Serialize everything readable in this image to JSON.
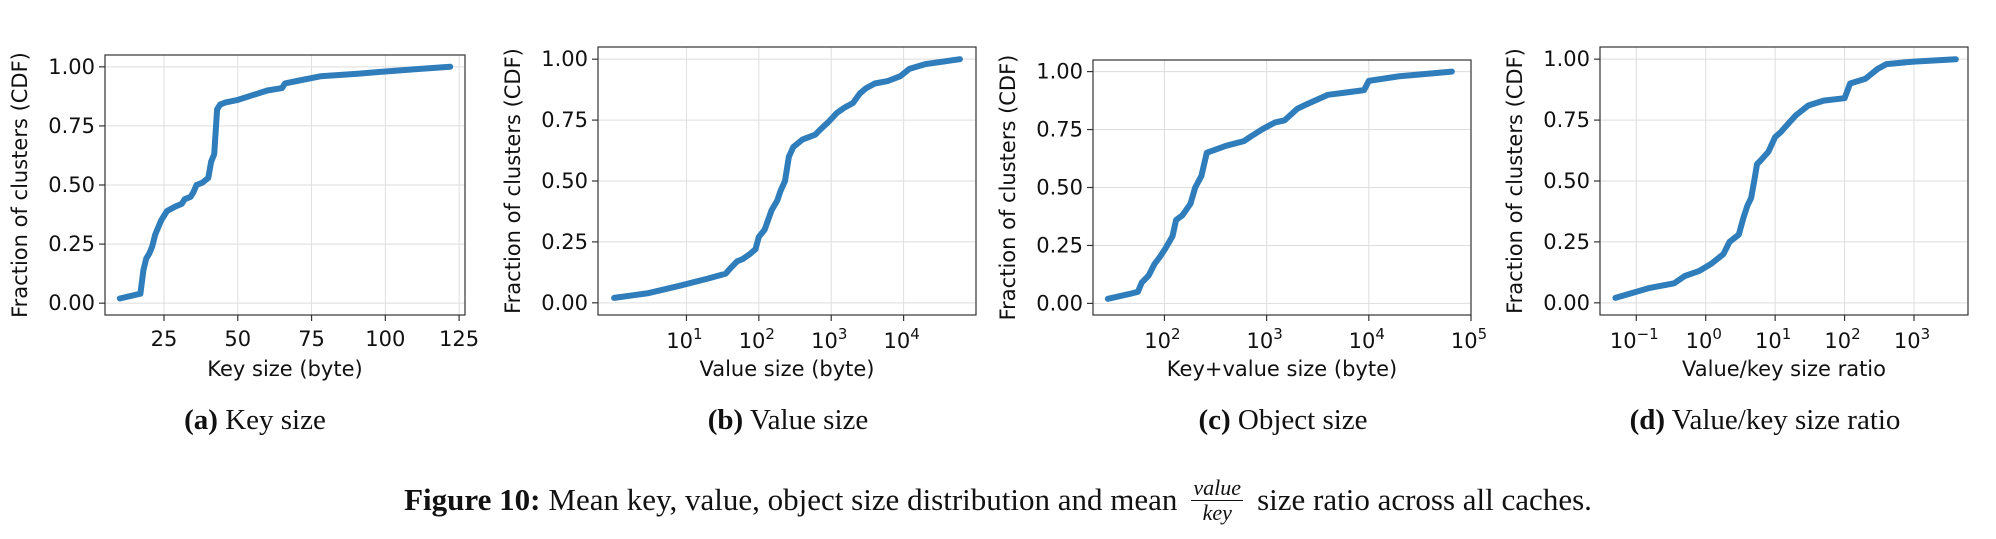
{
  "figure": {
    "caption_label": "Figure 10:",
    "caption_before": "Mean key, value, object size distribution and mean",
    "caption_frac_num": "value",
    "caption_frac_den": "key",
    "caption_after": "size ratio across all caches."
  },
  "series_color": "#2f7dbb",
  "chart_data": [
    {
      "id": "a",
      "type": "line",
      "subcaption_letter": "(a)",
      "subcaption_text": "Key size",
      "xlabel": "Key size (byte)",
      "ylabel": "Fraction of clusters (CDF)",
      "xscale": "linear",
      "xlim": [
        5,
        127
      ],
      "ylim": [
        -0.05,
        1.05
      ],
      "xticks": [
        25,
        50,
        75,
        100,
        125
      ],
      "xtick_labels": [
        "25",
        "50",
        "75",
        "100",
        "125"
      ],
      "yticks": [
        0,
        0.25,
        0.5,
        0.75,
        1.0
      ],
      "ytick_labels": [
        "0.00",
        "0.25",
        "0.50",
        "0.75",
        "1.00"
      ],
      "grid": true,
      "x": [
        10,
        17,
        18,
        19,
        20,
        21,
        22,
        24,
        26,
        29,
        31,
        32,
        34,
        35,
        36,
        38,
        39,
        40,
        41,
        42,
        43,
        44,
        46,
        50,
        55,
        60,
        65,
        66,
        70,
        78,
        90,
        100,
        110,
        122
      ],
      "y": [
        0.02,
        0.04,
        0.14,
        0.19,
        0.21,
        0.24,
        0.29,
        0.35,
        0.39,
        0.41,
        0.42,
        0.44,
        0.45,
        0.47,
        0.5,
        0.51,
        0.52,
        0.53,
        0.6,
        0.63,
        0.82,
        0.84,
        0.85,
        0.86,
        0.88,
        0.9,
        0.91,
        0.93,
        0.94,
        0.96,
        0.97,
        0.98,
        0.99,
        1.0
      ]
    },
    {
      "id": "b",
      "type": "line",
      "subcaption_letter": "(b)",
      "subcaption_text": "Value size",
      "xlabel": "Value size (byte)",
      "ylabel": "Fraction of clusters (CDF)",
      "xscale": "log",
      "xlim": [
        0.6,
        100000
      ],
      "ylim": [
        -0.05,
        1.05
      ],
      "xticks": [
        10,
        100,
        1000,
        10000
      ],
      "xtick_base": [
        "10",
        "10",
        "10",
        "10"
      ],
      "xtick_exp": [
        "1",
        "2",
        "3",
        "4"
      ],
      "yticks": [
        0,
        0.25,
        0.5,
        0.75,
        1.0
      ],
      "ytick_labels": [
        "0.00",
        "0.25",
        "0.50",
        "0.75",
        "1.00"
      ],
      "grid": true,
      "x": [
        1,
        3,
        8,
        20,
        35,
        40,
        50,
        60,
        75,
        90,
        100,
        120,
        150,
        180,
        200,
        230,
        260,
        300,
        400,
        600,
        700,
        900,
        1200,
        1500,
        2000,
        2500,
        3000,
        4000,
        6000,
        9000,
        12000,
        20000,
        60000
      ],
      "y": [
        0.02,
        0.04,
        0.07,
        0.1,
        0.12,
        0.14,
        0.17,
        0.18,
        0.2,
        0.22,
        0.27,
        0.3,
        0.38,
        0.42,
        0.46,
        0.5,
        0.6,
        0.64,
        0.67,
        0.69,
        0.71,
        0.74,
        0.78,
        0.8,
        0.82,
        0.86,
        0.88,
        0.9,
        0.91,
        0.93,
        0.96,
        0.98,
        1.0
      ]
    },
    {
      "id": "c",
      "type": "line",
      "subcaption_letter": "(c)",
      "subcaption_text": "Object size",
      "xlabel": "Key+value size (byte)",
      "ylabel": "Fraction of clusters (CDF)",
      "xscale": "log",
      "xlim": [
        20,
        100000
      ],
      "ylim": [
        -0.05,
        1.05
      ],
      "xticks": [
        100,
        1000,
        10000,
        100000
      ],
      "xtick_base": [
        "10",
        "10",
        "10",
        "10"
      ],
      "xtick_exp": [
        "2",
        "3",
        "4",
        "5"
      ],
      "yticks": [
        0,
        0.25,
        0.5,
        0.75,
        1.0
      ],
      "ytick_labels": [
        "0.00",
        "0.25",
        "0.50",
        "0.75",
        "1.00"
      ],
      "grid": true,
      "x": [
        28,
        45,
        55,
        60,
        70,
        80,
        90,
        100,
        120,
        130,
        150,
        180,
        200,
        230,
        260,
        300,
        400,
        600,
        700,
        900,
        1200,
        1500,
        2000,
        2500,
        4000,
        6000,
        9000,
        10000,
        20000,
        65000
      ],
      "y": [
        0.02,
        0.04,
        0.05,
        0.09,
        0.12,
        0.17,
        0.2,
        0.23,
        0.29,
        0.36,
        0.38,
        0.43,
        0.5,
        0.55,
        0.65,
        0.66,
        0.68,
        0.7,
        0.72,
        0.75,
        0.78,
        0.79,
        0.84,
        0.86,
        0.9,
        0.91,
        0.92,
        0.96,
        0.98,
        1.0
      ]
    },
    {
      "id": "d",
      "type": "line",
      "subcaption_letter": "(d)",
      "subcaption_text": "Value/key size ratio",
      "xlabel": "Value/key size ratio",
      "ylabel": "Fraction of clusters (CDF)",
      "xscale": "log",
      "xlim": [
        0.03,
        6000
      ],
      "ylim": [
        -0.05,
        1.05
      ],
      "xticks": [
        0.1,
        1,
        10,
        100,
        1000
      ],
      "xtick_base": [
        "10",
        "10",
        "10",
        "10",
        "10"
      ],
      "xtick_exp": [
        "−1",
        "0",
        "1",
        "2",
        "3"
      ],
      "yticks": [
        0,
        0.25,
        0.5,
        0.75,
        1.0
      ],
      "ytick_labels": [
        "0.00",
        "0.25",
        "0.50",
        "0.75",
        "1.00"
      ],
      "grid": true,
      "x": [
        0.05,
        0.15,
        0.35,
        0.5,
        0.8,
        1.2,
        1.8,
        2.2,
        3,
        3.5,
        4,
        4.5,
        5,
        5.5,
        6,
        8,
        10,
        12,
        16,
        20,
        30,
        50,
        100,
        120,
        200,
        300,
        400,
        1000,
        4000
      ],
      "y": [
        0.02,
        0.06,
        0.08,
        0.11,
        0.13,
        0.16,
        0.2,
        0.25,
        0.28,
        0.35,
        0.4,
        0.43,
        0.5,
        0.57,
        0.58,
        0.62,
        0.68,
        0.7,
        0.74,
        0.77,
        0.81,
        0.83,
        0.84,
        0.9,
        0.92,
        0.96,
        0.98,
        0.99,
        1.0
      ]
    }
  ]
}
